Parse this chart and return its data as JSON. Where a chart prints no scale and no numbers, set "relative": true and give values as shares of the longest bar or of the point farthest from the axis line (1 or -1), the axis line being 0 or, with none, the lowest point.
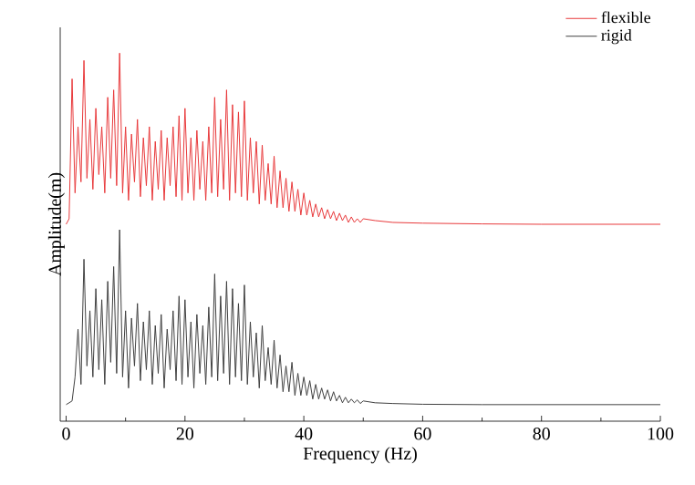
{
  "chart_data": {
    "type": "line",
    "relative": true,
    "xlabel": "Frequency (Hz)",
    "ylabel": "Amplitude(m)",
    "x": [
      0,
      0.5,
      1,
      1.5,
      2,
      2.5,
      3,
      3.5,
      4,
      4.5,
      5,
      5.5,
      6,
      6.5,
      7,
      7.5,
      8,
      8.5,
      9,
      9.5,
      10,
      10.5,
      11,
      11.5,
      12,
      12.5,
      13,
      13.5,
      14,
      14.5,
      15,
      15.5,
      16,
      16.5,
      17,
      17.5,
      18,
      18.5,
      19,
      19.5,
      20,
      20.5,
      21,
      21.5,
      22,
      22.5,
      23,
      23.5,
      24,
      24.5,
      25,
      25.5,
      26,
      26.5,
      27,
      27.5,
      28,
      28.5,
      29,
      29.5,
      30,
      30.5,
      31,
      31.5,
      32,
      32.5,
      33,
      33.5,
      34,
      34.5,
      35,
      35.5,
      36,
      36.5,
      37,
      37.5,
      38,
      38.5,
      39,
      39.5,
      40,
      40.5,
      41,
      41.5,
      42,
      42.5,
      43,
      43.5,
      44,
      44.5,
      45,
      45.5,
      46,
      46.5,
      47,
      47.5,
      48,
      48.5,
      49,
      49.5,
      50,
      52,
      55,
      60,
      70,
      80,
      90,
      100
    ],
    "series": [
      {
        "name": "flexible",
        "color": "#e8393b",
        "values": [
          0.535,
          0.55,
          0.93,
          0.62,
          0.8,
          0.65,
          0.98,
          0.66,
          0.82,
          0.63,
          0.85,
          0.67,
          0.8,
          0.62,
          0.88,
          0.66,
          0.9,
          0.64,
          1.0,
          0.62,
          0.8,
          0.6,
          0.78,
          0.65,
          0.82,
          0.61,
          0.77,
          0.64,
          0.8,
          0.6,
          0.76,
          0.63,
          0.79,
          0.6,
          0.77,
          0.64,
          0.8,
          0.61,
          0.83,
          0.6,
          0.85,
          0.62,
          0.77,
          0.6,
          0.79,
          0.63,
          0.76,
          0.6,
          0.8,
          0.62,
          0.88,
          0.61,
          0.82,
          0.63,
          0.9,
          0.6,
          0.86,
          0.62,
          0.84,
          0.61,
          0.87,
          0.6,
          0.77,
          0.62,
          0.76,
          0.59,
          0.75,
          0.6,
          0.7,
          0.59,
          0.72,
          0.58,
          0.68,
          0.58,
          0.66,
          0.57,
          0.65,
          0.57,
          0.63,
          0.56,
          0.62,
          0.56,
          0.6,
          0.555,
          0.59,
          0.555,
          0.58,
          0.55,
          0.575,
          0.55,
          0.57,
          0.545,
          0.565,
          0.545,
          0.56,
          0.54,
          0.555,
          0.54,
          0.55,
          0.54,
          0.55,
          0.545,
          0.54,
          0.538,
          0.536,
          0.535,
          0.535,
          0.535
        ]
      },
      {
        "name": "rigid",
        "color": "#404040",
        "values": [
          0.045,
          0.05,
          0.055,
          0.12,
          0.25,
          0.1,
          0.44,
          0.15,
          0.3,
          0.12,
          0.36,
          0.14,
          0.33,
          0.1,
          0.38,
          0.16,
          0.42,
          0.13,
          0.52,
          0.12,
          0.3,
          0.09,
          0.28,
          0.15,
          0.32,
          0.11,
          0.27,
          0.14,
          0.3,
          0.1,
          0.26,
          0.13,
          0.29,
          0.09,
          0.25,
          0.14,
          0.3,
          0.11,
          0.34,
          0.1,
          0.33,
          0.12,
          0.27,
          0.09,
          0.29,
          0.13,
          0.26,
          0.1,
          0.31,
          0.12,
          0.4,
          0.11,
          0.34,
          0.13,
          0.38,
          0.1,
          0.36,
          0.12,
          0.32,
          0.11,
          0.37,
          0.1,
          0.27,
          0.12,
          0.24,
          0.09,
          0.26,
          0.11,
          0.2,
          0.1,
          0.22,
          0.09,
          0.18,
          0.08,
          0.15,
          0.08,
          0.16,
          0.07,
          0.13,
          0.07,
          0.12,
          0.07,
          0.11,
          0.06,
          0.1,
          0.06,
          0.09,
          0.06,
          0.085,
          0.055,
          0.08,
          0.055,
          0.07,
          0.05,
          0.065,
          0.05,
          0.06,
          0.05,
          0.058,
          0.048,
          0.055,
          0.05,
          0.048,
          0.046,
          0.045,
          0.045,
          0.045,
          0.045
        ]
      }
    ],
    "xlim": [
      -1,
      100
    ],
    "xticks": [
      0,
      20,
      40,
      60,
      80,
      100
    ],
    "legend": "top right",
    "line_style": "solid"
  }
}
